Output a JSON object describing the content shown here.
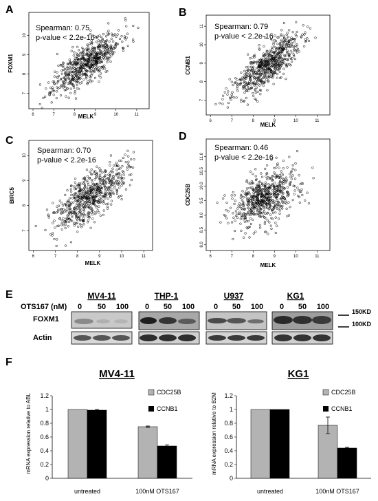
{
  "panels": {
    "A": "A",
    "B": "B",
    "C": "C",
    "D": "D",
    "E": "E",
    "F": "F"
  },
  "chart_data": [
    {
      "type": "scatter",
      "panel": "A",
      "xlabel": "MELK",
      "ylabel": "FOXM1",
      "annotation": [
        "Spearman: 0.75",
        "p-value  < 2.2e-16"
      ],
      "xlim": [
        5.8,
        11.6
      ],
      "ylim": [
        6.2,
        11.2
      ],
      "xticks": [
        "6",
        "7",
        "8",
        "9",
        "10",
        "11"
      ],
      "yticks": [
        "7",
        "8",
        "9",
        "10"
      ],
      "trend": {
        "x_mean": 8.6,
        "y_mean": 8.6,
        "x_sd": 0.8,
        "y_sd": 0.75,
        "r": 0.75,
        "n": 650,
        "seed": 11
      }
    },
    {
      "type": "scatter",
      "panel": "B",
      "xlabel": "MELK",
      "ylabel": "CCNB1",
      "annotation": [
        "Spearman: 0.79",
        "p-value  < 2.2e-16"
      ],
      "xlim": [
        5.8,
        11.6
      ],
      "ylim": [
        6.2,
        11.6
      ],
      "xticks": [
        "6",
        "7",
        "8",
        "9",
        "10",
        "11"
      ],
      "yticks": [
        "7",
        "8",
        "9",
        "10",
        "11"
      ],
      "trend": {
        "x_mean": 8.6,
        "y_mean": 8.8,
        "x_sd": 0.8,
        "y_sd": 0.85,
        "r": 0.79,
        "n": 650,
        "seed": 23
      }
    },
    {
      "type": "scatter",
      "panel": "C",
      "xlabel": "MELK",
      "ylabel": "BIRC5",
      "annotation": [
        "Spearman: 0.70",
        "p-value  < 2.2e-16"
      ],
      "xlim": [
        5.8,
        11.4
      ],
      "ylim": [
        6.2,
        10.6
      ],
      "xticks": [
        "6",
        "7",
        "8",
        "9",
        "10",
        "11"
      ],
      "yticks": [
        "7",
        "8",
        "9",
        "10"
      ],
      "trend": {
        "x_mean": 8.6,
        "y_mean": 8.4,
        "x_sd": 0.8,
        "y_sd": 0.65,
        "r": 0.7,
        "n": 650,
        "seed": 37
      }
    },
    {
      "type": "scatter",
      "panel": "D",
      "xlabel": "MELK",
      "ylabel": "CDC25B",
      "annotation": [
        "Spearman: 0.46",
        "p-value  < 2.2e-16"
      ],
      "xlim": [
        5.8,
        11.6
      ],
      "ylim": [
        7.8,
        11.6
      ],
      "xticks": [
        "6",
        "7",
        "8",
        "9",
        "10",
        "11"
      ],
      "yticks": [
        "8.0",
        "8.5",
        "9.0",
        "9.5",
        "10.0",
        "10.5",
        "11.0"
      ],
      "trend": {
        "x_mean": 8.6,
        "y_mean": 9.6,
        "x_sd": 0.8,
        "y_sd": 0.5,
        "r": 0.46,
        "n": 650,
        "seed": 53
      }
    },
    {
      "type": "bar",
      "panel": "F",
      "title": "MV4-11",
      "ylabel": "mRNA expression relative to ABL",
      "categories": [
        "untreated",
        "100nM OTS167"
      ],
      "ylim": [
        0,
        1.2
      ],
      "yticks": [
        "0",
        "0.2",
        "0.4",
        "0.6",
        "0.8",
        "1",
        "1.2"
      ],
      "series": [
        {
          "name": "CDC25B",
          "color": "#b3b3b3",
          "values": [
            1.0,
            0.75
          ],
          "errors": [
            0.0,
            0.01
          ]
        },
        {
          "name": "CCNB1",
          "color": "#000000",
          "values": [
            0.99,
            0.47
          ],
          "errors": [
            0.01,
            0.015
          ]
        }
      ]
    },
    {
      "type": "bar",
      "panel": "F",
      "title": "KG1",
      "ylabel": "mRNA expression relative to B2M",
      "categories": [
        "untreated",
        "100nM OTS167"
      ],
      "ylim": [
        0,
        1.2
      ],
      "yticks": [
        "0",
        "0.2",
        "0.4",
        "0.6",
        "0.8",
        "1",
        "1.2"
      ],
      "series": [
        {
          "name": "CDC25B",
          "color": "#b3b3b3",
          "values": [
            1.0,
            0.77
          ],
          "errors": [
            0.0,
            0.12
          ]
        },
        {
          "name": "CCNB1",
          "color": "#000000",
          "values": [
            1.0,
            0.44
          ],
          "errors": [
            0.0,
            0.01
          ]
        }
      ]
    }
  ],
  "blot": {
    "cell_lines": [
      "MV4-11",
      "THP-1",
      "U937",
      "KG1"
    ],
    "treatment_label": "OTS167 (nM)",
    "doses": [
      "0",
      "50",
      "100"
    ],
    "rows": [
      "FOXM1",
      "Actin"
    ],
    "markers": [
      "150KD",
      "100KD"
    ]
  }
}
